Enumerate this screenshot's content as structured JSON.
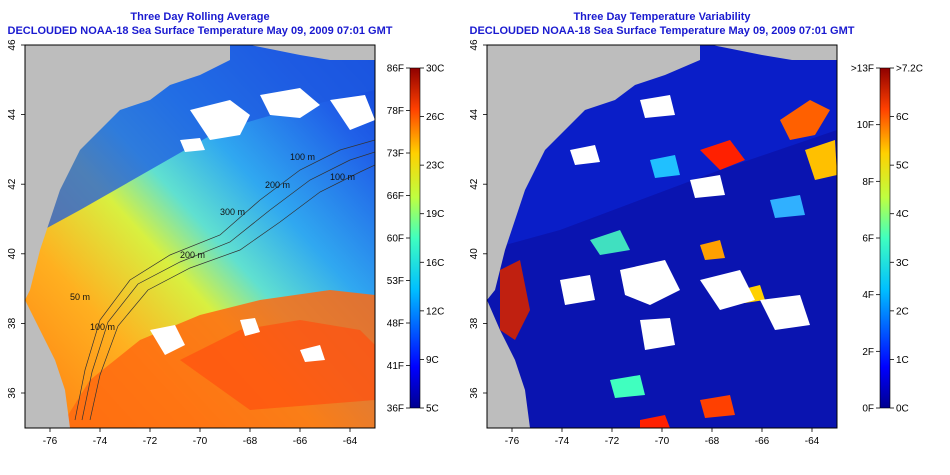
{
  "panels": [
    {
      "id": "avg",
      "title_line1": "Three Day Rolling Average",
      "title_line2": "DECLOUDED NOAA-18 Sea Surface Temperature May 09, 2009 07:01 GMT",
      "x_ticks": [
        "-76",
        "-74",
        "-72",
        "-70",
        "-68",
        "-66",
        "-64"
      ],
      "y_ticks": [
        "36",
        "38",
        "40",
        "42",
        "44",
        "46"
      ],
      "colorbar_left": [
        "86F",
        "78F",
        "73F",
        "66F",
        "60F",
        "53F",
        "48F",
        "41F",
        "36F"
      ],
      "colorbar_right": [
        "30C",
        "26C",
        "23C",
        "19C",
        "16C",
        "12C",
        "9C",
        "5C"
      ],
      "contour_labels": [
        "100 m",
        "200 m",
        "300 m",
        "100 m",
        "200 m",
        "100 m",
        "50 m"
      ]
    },
    {
      "id": "var",
      "title_line1": "Three Day Temperature Variability",
      "title_line2": "DECLOUDED NOAA-18 Sea Surface Temperature May 09, 2009 07:01 GMT",
      "x_ticks": [
        "-76",
        "-74",
        "-72",
        "-70",
        "-68",
        "-66",
        "-64"
      ],
      "y_ticks": [
        "36",
        "38",
        "40",
        "42",
        "44",
        "46"
      ],
      "colorbar_left": [
        ">13F",
        "10F",
        "8F",
        "6F",
        "4F",
        "2F",
        "0F"
      ],
      "colorbar_right": [
        ">7.2C",
        "6C",
        "5C",
        "4C",
        "3C",
        "2C",
        "1C",
        "0C"
      ]
    }
  ],
  "colors": {
    "land": "#bdbdbd",
    "cloud": "#ffffff",
    "title": "#1a1ad0"
  }
}
